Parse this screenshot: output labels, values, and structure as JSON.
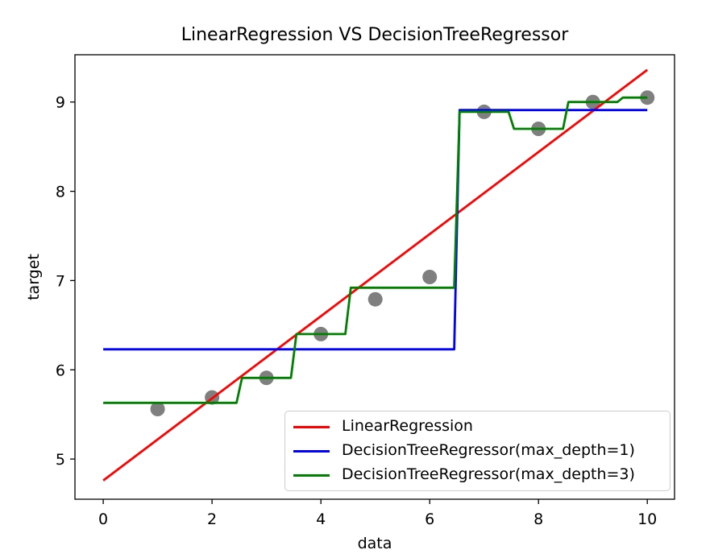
{
  "chart_data": {
    "type": "line",
    "title": "LinearRegression VS DecisionTreeRegressor",
    "xlabel": "data",
    "ylabel": "target",
    "xlim": [
      -0.52,
      10.5
    ],
    "ylim": [
      4.55,
      9.53
    ],
    "x_ticks": [
      0,
      2,
      4,
      6,
      8,
      10
    ],
    "y_ticks": [
      5,
      6,
      7,
      8,
      9
    ],
    "grid": false,
    "legend_position": "lower right",
    "scatter": {
      "name": "training-data-points",
      "color": "#7f7f7f",
      "marker_radius_px": 9,
      "x": [
        1,
        2,
        3,
        4,
        5,
        6,
        7,
        8,
        9,
        10
      ],
      "y": [
        5.56,
        5.69,
        5.91,
        6.4,
        6.79,
        7.04,
        8.89,
        8.7,
        9.0,
        9.05
      ]
    },
    "series": [
      {
        "name": "LinearRegression",
        "color": "#ff0000",
        "style": "straight-line",
        "x": [
          0,
          10
        ],
        "y": [
          4.76,
          9.36
        ]
      },
      {
        "name": "DecisionTreeRegressor(max_depth=1)",
        "color": "#0000ff",
        "style": "step",
        "segments": [
          {
            "x0": 0,
            "x1": 6.5,
            "y": 6.23
          },
          {
            "x0": 6.5,
            "x1": 10,
            "y": 8.91
          }
        ]
      },
      {
        "name": "DecisionTreeRegressor(max_depth=3)",
        "color": "#008000",
        "style": "step",
        "segments": [
          {
            "x0": 0,
            "x1": 2.5,
            "y": 5.63
          },
          {
            "x0": 2.5,
            "x1": 3.5,
            "y": 5.91
          },
          {
            "x0": 3.5,
            "x1": 4.5,
            "y": 6.4
          },
          {
            "x0": 4.5,
            "x1": 6.5,
            "y": 6.92
          },
          {
            "x0": 6.5,
            "x1": 7.5,
            "y": 8.89
          },
          {
            "x0": 7.5,
            "x1": 8.5,
            "y": 8.7
          },
          {
            "x0": 8.5,
            "x1": 9.5,
            "y": 9.0
          },
          {
            "x0": 9.5,
            "x1": 10,
            "y": 9.05
          }
        ]
      }
    ],
    "colors": {
      "axes_border": "#000000",
      "tick_text": "#000000",
      "legend_border": "#cccccc",
      "background": "#ffffff"
    }
  }
}
